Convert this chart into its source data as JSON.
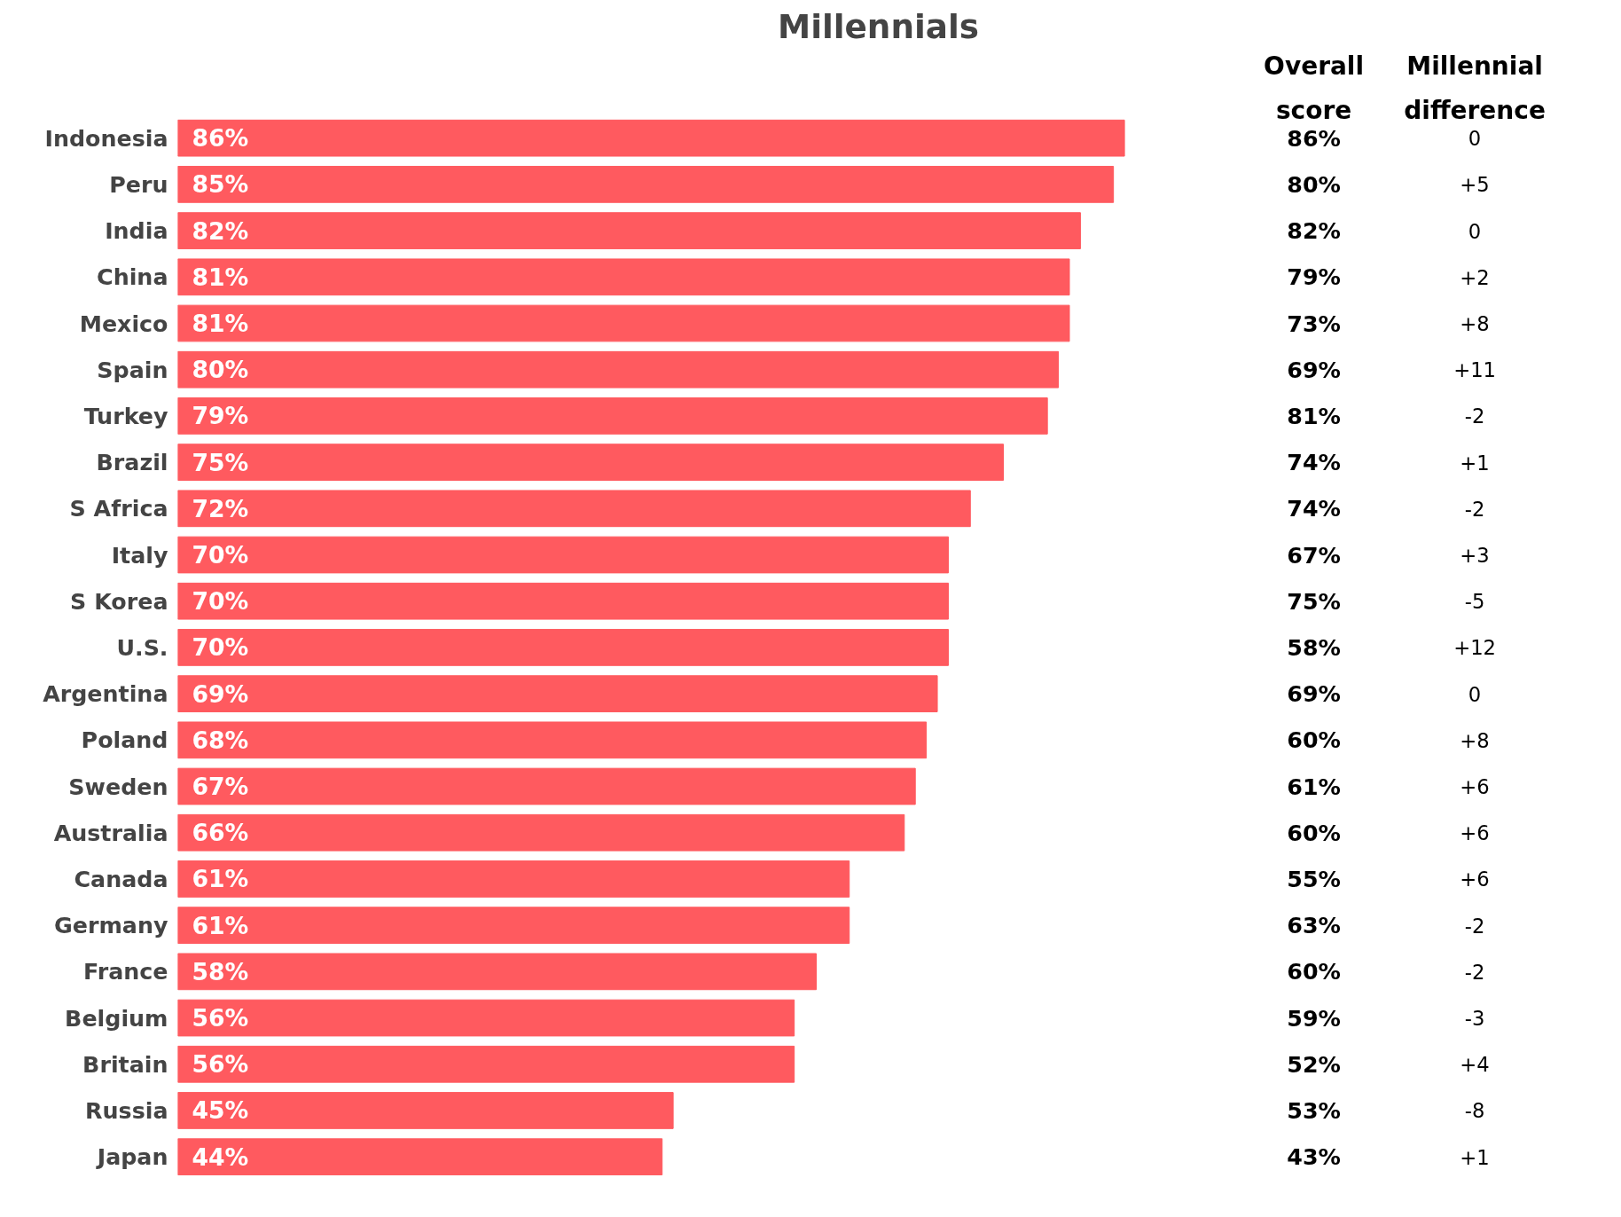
{
  "chart_data": {
    "type": "bar",
    "orientation": "horizontal",
    "title": "Millennials",
    "categories": [
      "Indonesia",
      "Peru",
      "India",
      "China",
      "Mexico",
      "Spain",
      "Turkey",
      "Brazil",
      "S Africa",
      "Italy",
      "S Korea",
      "U.S.",
      "Argentina",
      "Poland",
      "Sweden",
      "Australia",
      "Canada",
      "Germany",
      "France",
      "Belgium",
      "Britain",
      "Russia",
      "Japan"
    ],
    "values": [
      86,
      85,
      82,
      81,
      81,
      80,
      79,
      75,
      72,
      70,
      70,
      70,
      69,
      68,
      67,
      66,
      61,
      61,
      58,
      56,
      56,
      45,
      44
    ],
    "value_labels": [
      "86%",
      "85%",
      "82%",
      "81%",
      "81%",
      "80%",
      "79%",
      "75%",
      "72%",
      "70%",
      "70%",
      "70%",
      "69%",
      "68%",
      "67%",
      "66%",
      "61%",
      "61%",
      "58%",
      "56%",
      "56%",
      "45%",
      "44%"
    ],
    "color": "#ff5a5f",
    "grid": false,
    "tick_labels": "y",
    "annotations": [
      "Overall score",
      "Millennial difference",
      "86%",
      "80%",
      "82%",
      "79%",
      "73%",
      "69%",
      "81%",
      "74%",
      "74%",
      "67%",
      "75%",
      "58%",
      "69%",
      "60%",
      "61%",
      "60%",
      "55%",
      "63%",
      "60%",
      "59%",
      "52%",
      "53%",
      "43%",
      "0",
      "+5",
      "0",
      "+2",
      "+8",
      "+11",
      "-2",
      "+1",
      "-2",
      "+3",
      "-5",
      "+12",
      "0",
      "+8",
      "+6",
      "+6",
      "+6",
      "-2",
      "-2",
      "-3",
      "+4",
      "-8",
      "+1"
    ]
  }
}
